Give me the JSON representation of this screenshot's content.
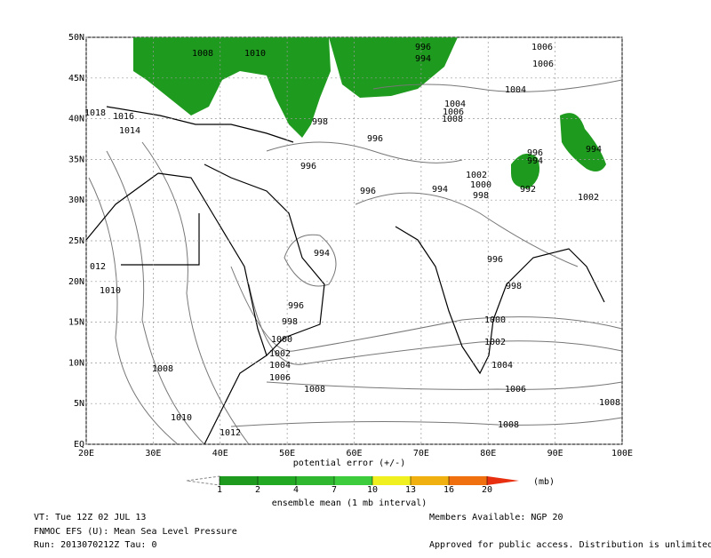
{
  "map": {
    "lon_ticks": [
      {
        "value": 20,
        "label": "20E"
      },
      {
        "value": 30,
        "label": "30E"
      },
      {
        "value": 40,
        "label": "40E"
      },
      {
        "value": 50,
        "label": "50E"
      },
      {
        "value": 60,
        "label": "60E"
      },
      {
        "value": 70,
        "label": "70E"
      },
      {
        "value": 80,
        "label": "80E"
      },
      {
        "value": 90,
        "label": "90E"
      },
      {
        "value": 100,
        "label": "100E"
      }
    ],
    "lat_ticks": [
      {
        "value": 0,
        "label": "EQ"
      },
      {
        "value": 5,
        "label": "5N"
      },
      {
        "value": 10,
        "label": "10N"
      },
      {
        "value": 15,
        "label": "15N"
      },
      {
        "value": 20,
        "label": "20N"
      },
      {
        "value": 25,
        "label": "25N"
      },
      {
        "value": 30,
        "label": "30N"
      },
      {
        "value": 35,
        "label": "35N"
      },
      {
        "value": 40,
        "label": "40N"
      },
      {
        "value": 45,
        "label": "45N"
      },
      {
        "value": 50,
        "label": "50N"
      }
    ],
    "contour_labels": [
      "1008",
      "1010",
      "996",
      "994",
      "1006",
      "1006",
      "1004",
      "1018",
      "1016",
      "1014",
      "998",
      "996",
      "1004",
      "1006",
      "1008",
      "996",
      "996",
      "994",
      "994",
      "1002",
      "1000",
      "998",
      "994",
      "996",
      "992",
      "1002",
      "994",
      "996",
      "012",
      "998",
      "1010",
      "996",
      "998",
      "1000",
      "1000",
      "1002",
      "1002",
      "1004",
      "1004",
      "1006",
      "1008",
      "1006",
      "1008",
      "1008",
      "1010",
      "1008",
      "1012"
    ]
  },
  "colorbar": {
    "title": "potential error (+/-)",
    "levels": [
      1,
      2,
      4,
      7,
      10,
      13,
      16,
      20
    ],
    "colors": [
      "#1e9a1e",
      "#23a823",
      "#2fb82f",
      "#3ccc3c",
      "#f0f020",
      "#f0b010",
      "#f07010",
      "#e83010"
    ],
    "unit": "(mb)",
    "subtitle": "ensemble mean (1 mb interval)"
  },
  "footer": {
    "valid_time": "VT: Tue 12Z 02 JUL 13",
    "product": "FNMOC EFS (U): Mean Sea Level Pressure",
    "run": "Run: 2013070212Z Tau: 0",
    "members": "Members Available: NGP 20",
    "notice": "Approved for public access. Distribution is unlimited."
  }
}
